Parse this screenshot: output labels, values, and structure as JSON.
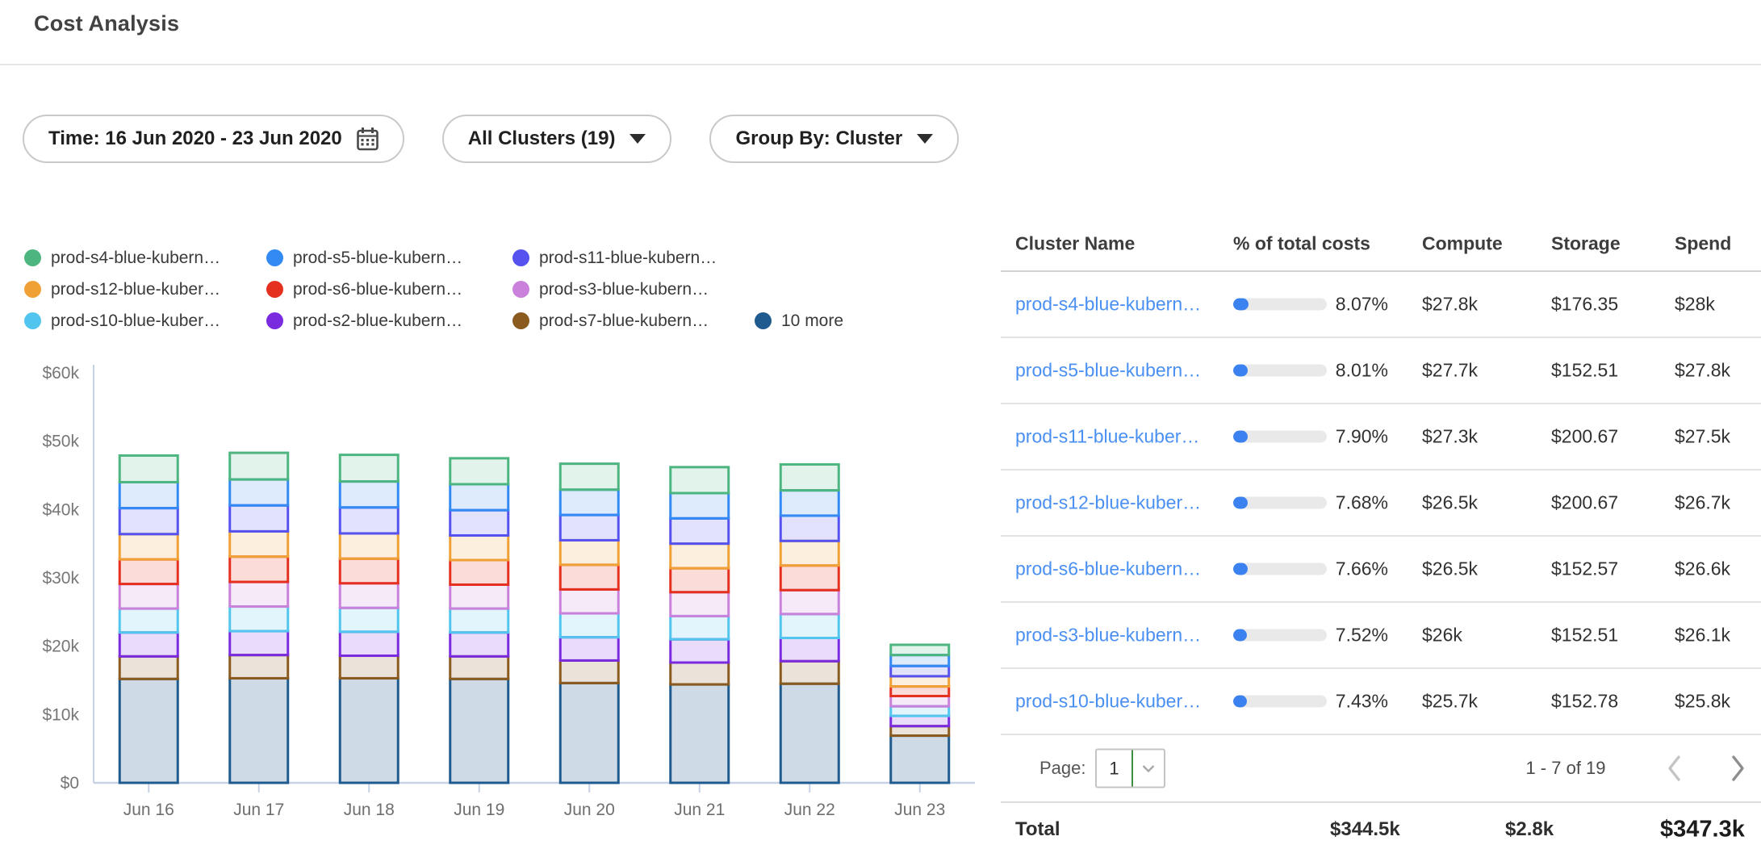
{
  "page": {
    "title": "Cost Analysis"
  },
  "filters": {
    "time_label": "Time: 16 Jun 2020 - 23 Jun 2020",
    "clusters_label": "All Clusters (19)",
    "group_by_label": "Group By: Cluster"
  },
  "chart_data": {
    "type": "bar",
    "stacked": true,
    "unit": "USD thousands per day",
    "title": "",
    "xlabel": "",
    "ylabel": "",
    "x": [
      "Jun 16",
      "Jun 17",
      "Jun 18",
      "Jun 19",
      "Jun 20",
      "Jun 21",
      "Jun 22",
      "Jun 23"
    ],
    "y_ticks": [
      "$0",
      "$10k",
      "$20k",
      "$30k",
      "$40k",
      "$50k",
      "$60k"
    ],
    "ylim": [
      0,
      60
    ],
    "grid": false,
    "legend_position": "top",
    "legend": [
      {
        "label": "prod-s4-blue-kubern…",
        "color": "#4DB580"
      },
      {
        "label": "prod-s5-blue-kubern…",
        "color": "#338AF3"
      },
      {
        "label": "prod-s11-blue-kubern…",
        "color": "#5552F0"
      },
      {
        "label": "prod-s12-blue-kuber…",
        "color": "#F0A136"
      },
      {
        "label": "prod-s6-blue-kubern…",
        "color": "#E5301F"
      },
      {
        "label": "prod-s3-blue-kubern…",
        "color": "#C981DB"
      },
      {
        "label": "prod-s10-blue-kuber…",
        "color": "#52C5EE"
      },
      {
        "label": "prod-s2-blue-kubern…",
        "color": "#7A2BDF"
      },
      {
        "label": "prod-s7-blue-kubern…",
        "color": "#8A5A1E"
      },
      {
        "label": "10 more",
        "color": "#1F5B8E"
      }
    ],
    "series": [
      {
        "name": "10 more",
        "color": "#1F5B8E",
        "fill_opacity": 0.22,
        "values": [
          15.2,
          15.3,
          15.3,
          15.2,
          14.6,
          14.4,
          14.5,
          6.9
        ]
      },
      {
        "name": "prod-s7-blue-kubern…",
        "color": "#8A5A1E",
        "fill_opacity": 0.17,
        "values": [
          3.3,
          3.4,
          3.3,
          3.3,
          3.3,
          3.2,
          3.3,
          1.4
        ]
      },
      {
        "name": "prod-s2-blue-kubern…",
        "color": "#7A2BDF",
        "fill_opacity": 0.17,
        "values": [
          3.5,
          3.5,
          3.5,
          3.5,
          3.4,
          3.4,
          3.4,
          1.5
        ]
      },
      {
        "name": "prod-s10-blue-kuber…",
        "color": "#52C5EE",
        "fill_opacity": 0.17,
        "values": [
          3.5,
          3.6,
          3.5,
          3.5,
          3.5,
          3.4,
          3.5,
          1.4
        ]
      },
      {
        "name": "prod-s3-blue-kubern…",
        "color": "#C981DB",
        "fill_opacity": 0.17,
        "values": [
          3.6,
          3.6,
          3.6,
          3.5,
          3.5,
          3.5,
          3.5,
          1.5
        ]
      },
      {
        "name": "prod-s6-blue-kubern…",
        "color": "#E5301F",
        "fill_opacity": 0.17,
        "values": [
          3.6,
          3.7,
          3.6,
          3.6,
          3.6,
          3.5,
          3.6,
          1.4
        ]
      },
      {
        "name": "prod-s12-blue-kuber…",
        "color": "#F0A136",
        "fill_opacity": 0.17,
        "values": [
          3.7,
          3.7,
          3.7,
          3.6,
          3.6,
          3.6,
          3.6,
          1.5
        ]
      },
      {
        "name": "prod-s11-blue-kuber…",
        "color": "#5552F0",
        "fill_opacity": 0.17,
        "values": [
          3.8,
          3.8,
          3.8,
          3.7,
          3.7,
          3.7,
          3.7,
          1.5
        ]
      },
      {
        "name": "prod-s5-blue-kubern…",
        "color": "#338AF3",
        "fill_opacity": 0.17,
        "values": [
          3.8,
          3.8,
          3.8,
          3.8,
          3.7,
          3.7,
          3.7,
          1.6
        ]
      },
      {
        "name": "prod-s4-blue-kubern…",
        "color": "#4DB580",
        "fill_opacity": 0.17,
        "values": [
          3.9,
          3.9,
          3.9,
          3.8,
          3.8,
          3.8,
          3.8,
          1.5
        ]
      }
    ]
  },
  "table": {
    "columns": [
      "Cluster Name",
      "% of total costs",
      "Compute",
      "Storage",
      "Spend"
    ],
    "rows": [
      {
        "name": "prod-s4-blue-kubern…",
        "pct": "8.07%",
        "pct_value": 8.07,
        "compute": "$27.8k",
        "storage": "$176.35",
        "spend": "$28k"
      },
      {
        "name": "prod-s5-blue-kubern…",
        "pct": "8.01%",
        "pct_value": 8.01,
        "compute": "$27.7k",
        "storage": "$152.51",
        "spend": "$27.8k"
      },
      {
        "name": "prod-s11-blue-kuber…",
        "pct": "7.90%",
        "pct_value": 7.9,
        "compute": "$27.3k",
        "storage": "$200.67",
        "spend": "$27.5k"
      },
      {
        "name": "prod-s12-blue-kuber…",
        "pct": "7.68%",
        "pct_value": 7.68,
        "compute": "$26.5k",
        "storage": "$200.67",
        "spend": "$26.7k"
      },
      {
        "name": "prod-s6-blue-kubern…",
        "pct": "7.66%",
        "pct_value": 7.66,
        "compute": "$26.5k",
        "storage": "$152.57",
        "spend": "$26.6k"
      },
      {
        "name": "prod-s3-blue-kubern…",
        "pct": "7.52%",
        "pct_value": 7.52,
        "compute": "$26k",
        "storage": "$152.51",
        "spend": "$26.1k"
      },
      {
        "name": "prod-s10-blue-kuber…",
        "pct": "7.43%",
        "pct_value": 7.43,
        "compute": "$25.7k",
        "storage": "$152.78",
        "spend": "$25.8k"
      }
    ],
    "pagination": {
      "label": "Page:",
      "page": "1",
      "range": "1 - 7 of 19"
    },
    "total": {
      "label": "Total",
      "compute": "$344.5k",
      "storage": "$2.8k",
      "spend": "$347.3k"
    }
  },
  "colors": {
    "link": "#4A90F2",
    "progress_fill": "#3B82F0",
    "progress_track": "#E9E9E9",
    "axis": "#C7D2E7",
    "axis_text": "#767676",
    "select_divider_green": "#3E8E41"
  }
}
